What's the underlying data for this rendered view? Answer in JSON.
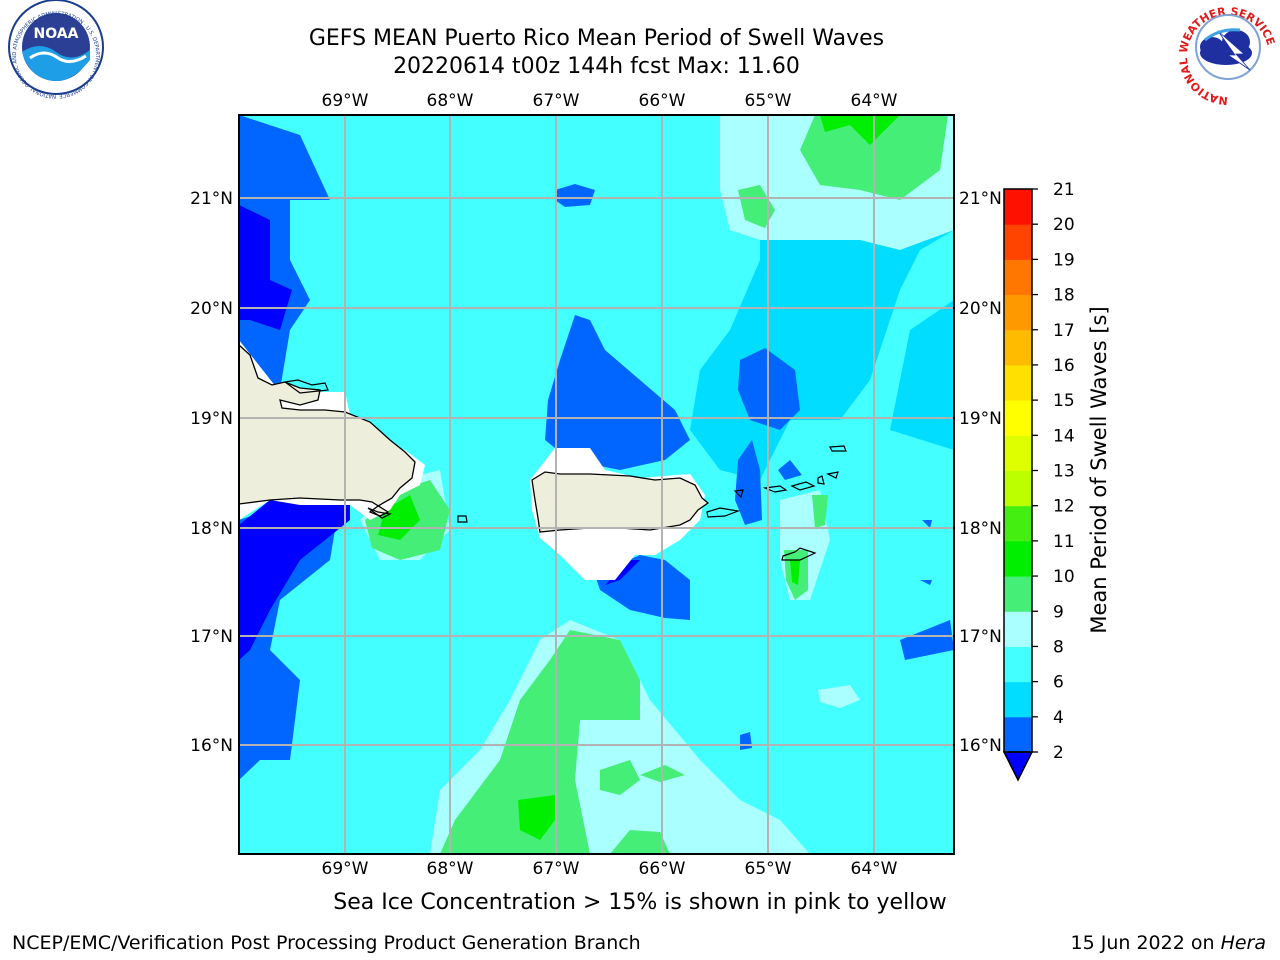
{
  "header": {
    "title_line1": "GEFS MEAN Puerto Rico Mean Period of Swell Waves",
    "title_line2": "20220614 t00z 144h fcst   Max: 11.60"
  },
  "logos": {
    "left": {
      "text": "NOAA",
      "ring_text": "NATIONAL OCEANIC AND ATMOSPHERIC ADMINISTRATION · U.S. DEPARTMENT OF COMMERCE"
    },
    "right": {
      "ring_text": "NATIONAL WEATHER SERVICE"
    }
  },
  "map": {
    "lon_labels": [
      "69°W",
      "68°W",
      "67°W",
      "66°W",
      "65°W",
      "64°W"
    ],
    "lat_labels": [
      "21°N",
      "20°N",
      "19°N",
      "18°N",
      "17°N",
      "16°N"
    ],
    "grid": true,
    "land_color": "#eeeedd",
    "coast_color": "#000000"
  },
  "colorbar": {
    "label": "Mean Period of Swell Waves [s]",
    "ticks": [
      "2",
      "4",
      "6",
      "8",
      "9",
      "10",
      "11",
      "12",
      "13",
      "14",
      "15",
      "16",
      "17",
      "18",
      "19",
      "20",
      "21"
    ],
    "under_color": "#0000ff",
    "colors": [
      "#0066ff",
      "#00ddff",
      "#44ffff",
      "#aaffff",
      "#44ee77",
      "#00ee00",
      "#44ee11",
      "#bbff00",
      "#ddff00",
      "#ffff00",
      "#ffe000",
      "#ffbb00",
      "#ff9900",
      "#ff7700",
      "#ff4400",
      "#ff1100"
    ]
  },
  "caption": "Sea Ice Concentration > 15% is shown in pink to yellow",
  "footer": {
    "left": "NCEP/EMC/Verification Post Processing Product Generation Branch",
    "right_prefix": "15 Jun 2022 on",
    "right_host": "Hera"
  }
}
